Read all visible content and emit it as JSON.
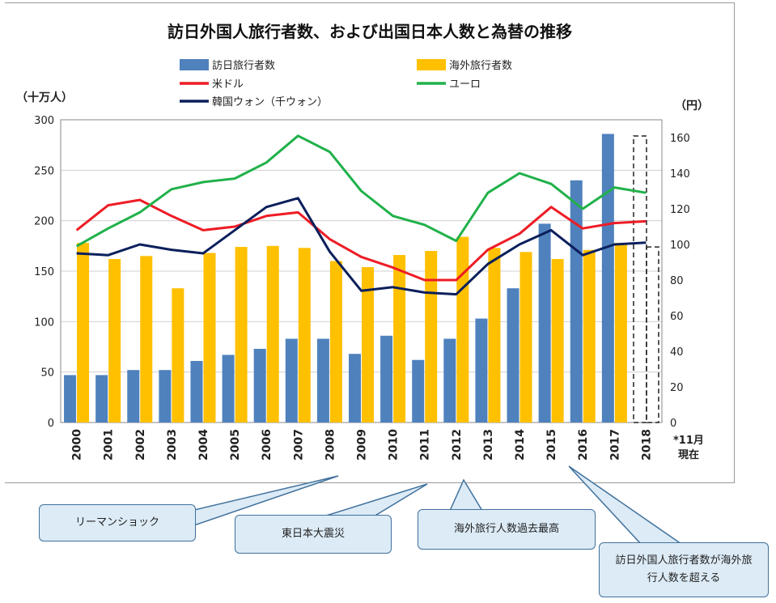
{
  "chart_data": {
    "type": "bar",
    "title": "訪日外国人旅行者数、および出国日本人数と為替の推移",
    "left_axis_unit": "（十万人）",
    "right_axis_unit": "（円）",
    "categories": [
      "2000",
      "2001",
      "2002",
      "2003",
      "2004",
      "2005",
      "2006",
      "2007",
      "2008",
      "2009",
      "2010",
      "2011",
      "2012",
      "2013",
      "2014",
      "2015",
      "2016",
      "2017",
      "2018"
    ],
    "last_category_note": [
      "*11月",
      "現在"
    ],
    "left_axis": {
      "min": 0,
      "max": 300,
      "ticks": [
        "0",
        "50",
        "100",
        "150",
        "200",
        "250",
        "300"
      ]
    },
    "right_axis": {
      "min": 0,
      "max": 170,
      "ticks": [
        "0",
        "20",
        "40",
        "60",
        "80",
        "100",
        "120",
        "140",
        "160"
      ]
    },
    "bar_series": [
      {
        "name": "訪日旅行者数",
        "color": "#4f81bd",
        "values": [
          47,
          47,
          52,
          52,
          61,
          67,
          73,
          83,
          83,
          68,
          86,
          62,
          83,
          103,
          133,
          197,
          240,
          286,
          null
        ]
      },
      {
        "name": "海外旅行者数",
        "color": "#ffc000",
        "values": [
          178,
          162,
          165,
          133,
          168,
          174,
          175,
          173,
          160,
          154,
          166,
          170,
          184,
          173,
          169,
          162,
          171,
          178,
          null
        ]
      }
    ],
    "line_series": [
      {
        "name": "米ドル",
        "color": "#ee1c25",
        "values": [
          108,
          122,
          125,
          116,
          108,
          110,
          116,
          118,
          103,
          93,
          87,
          80,
          80,
          97,
          106,
          121,
          109,
          112,
          113
        ]
      },
      {
        "name": "ユーロ",
        "color": "#21b14b",
        "values": [
          99,
          109,
          118,
          131,
          135,
          137,
          146,
          161,
          152,
          130,
          116,
          111,
          102,
          129,
          140,
          134,
          120,
          132,
          129
        ]
      },
      {
        "name": "韓国ウォン（千ウォン）",
        "color": "#0b1f5c",
        "values": [
          95,
          94,
          100,
          97,
          95,
          108,
          121,
          126,
          96,
          74,
          76,
          73,
          72,
          89,
          100,
          108,
          94,
          100,
          101
        ]
      }
    ],
    "legend_layout": "top, two columns",
    "grid": "horizontal"
  },
  "callouts": [
    {
      "text": "リーマンショック"
    },
    {
      "text": "東日本大震災"
    },
    {
      "text": "海外旅行人数過去最高"
    },
    {
      "text": "訪日外国人旅行者数が海外旅行人数を超える"
    }
  ]
}
